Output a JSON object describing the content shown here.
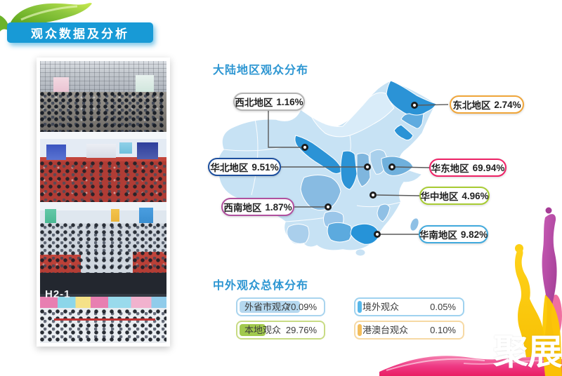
{
  "slide": {
    "title_badge": "观众数据及分析",
    "watermark": "聚展"
  },
  "map_section": {
    "heading": "大陆地区观众分布",
    "regions": [
      {
        "name": "西北地区",
        "value": "1.16%",
        "border_color": "#b3b3b3"
      },
      {
        "name": "东北地区",
        "value": "2.74%",
        "border_color": "#f0a63a"
      },
      {
        "name": "华北地区",
        "value": "9.51%",
        "border_color": "#1d4f9e"
      },
      {
        "name": "华东地区",
        "value": "69.94%",
        "border_color": "#ee2266"
      },
      {
        "name": "华中地区",
        "value": "4.96%",
        "border_color": "#a8cc33"
      },
      {
        "name": "西南地区",
        "value": "1.87%",
        "border_color": "#b0509e"
      },
      {
        "name": "华南地区",
        "value": "9.82%",
        "border_color": "#41aadd"
      }
    ],
    "map_colors": {
      "base": "#c7e2f4",
      "light": "#d9ecf9",
      "medium": "#7fb6de",
      "dark": "#2b93d6"
    }
  },
  "stats_section": {
    "heading": "中外观众总体分布",
    "items": [
      {
        "label": "外省市观众",
        "value": "70.09%",
        "percent": 70.09,
        "bar_color": "#b5d8ef"
      },
      {
        "label": "境外观众",
        "value": "0.05%",
        "percent": 0.05,
        "bar_color": "#57b7e9"
      },
      {
        "label": "本地观众",
        "value": "29.76%",
        "percent": 29.76,
        "bar_color": "#a1c94d"
      },
      {
        "label": "港澳台观众",
        "value": "0.10%",
        "percent": 0.1,
        "bar_color": "#f2bd5c"
      }
    ]
  },
  "photo_strip": {
    "hall_sign": "H2-1"
  },
  "chart_data": [
    {
      "type": "heatmap",
      "subtype": "china-choropleth-map",
      "title": "大陆地区观众分布",
      "categories": [
        "西北地区",
        "东北地区",
        "华北地区",
        "华东地区",
        "华中地区",
        "西南地区",
        "华南地区"
      ],
      "values": [
        1.16,
        2.74,
        9.51,
        69.94,
        4.96,
        1.87,
        9.82
      ],
      "unit": "%",
      "legend_position": "callout-pills"
    },
    {
      "type": "bar",
      "title": "中外观众总体分布",
      "categories": [
        "外省市观众",
        "境外观众",
        "本地观众",
        "港澳台观众"
      ],
      "values": [
        70.09,
        0.05,
        29.76,
        0.1
      ],
      "unit": "%",
      "xlim": [
        0,
        100
      ],
      "orientation": "horizontal"
    }
  ]
}
